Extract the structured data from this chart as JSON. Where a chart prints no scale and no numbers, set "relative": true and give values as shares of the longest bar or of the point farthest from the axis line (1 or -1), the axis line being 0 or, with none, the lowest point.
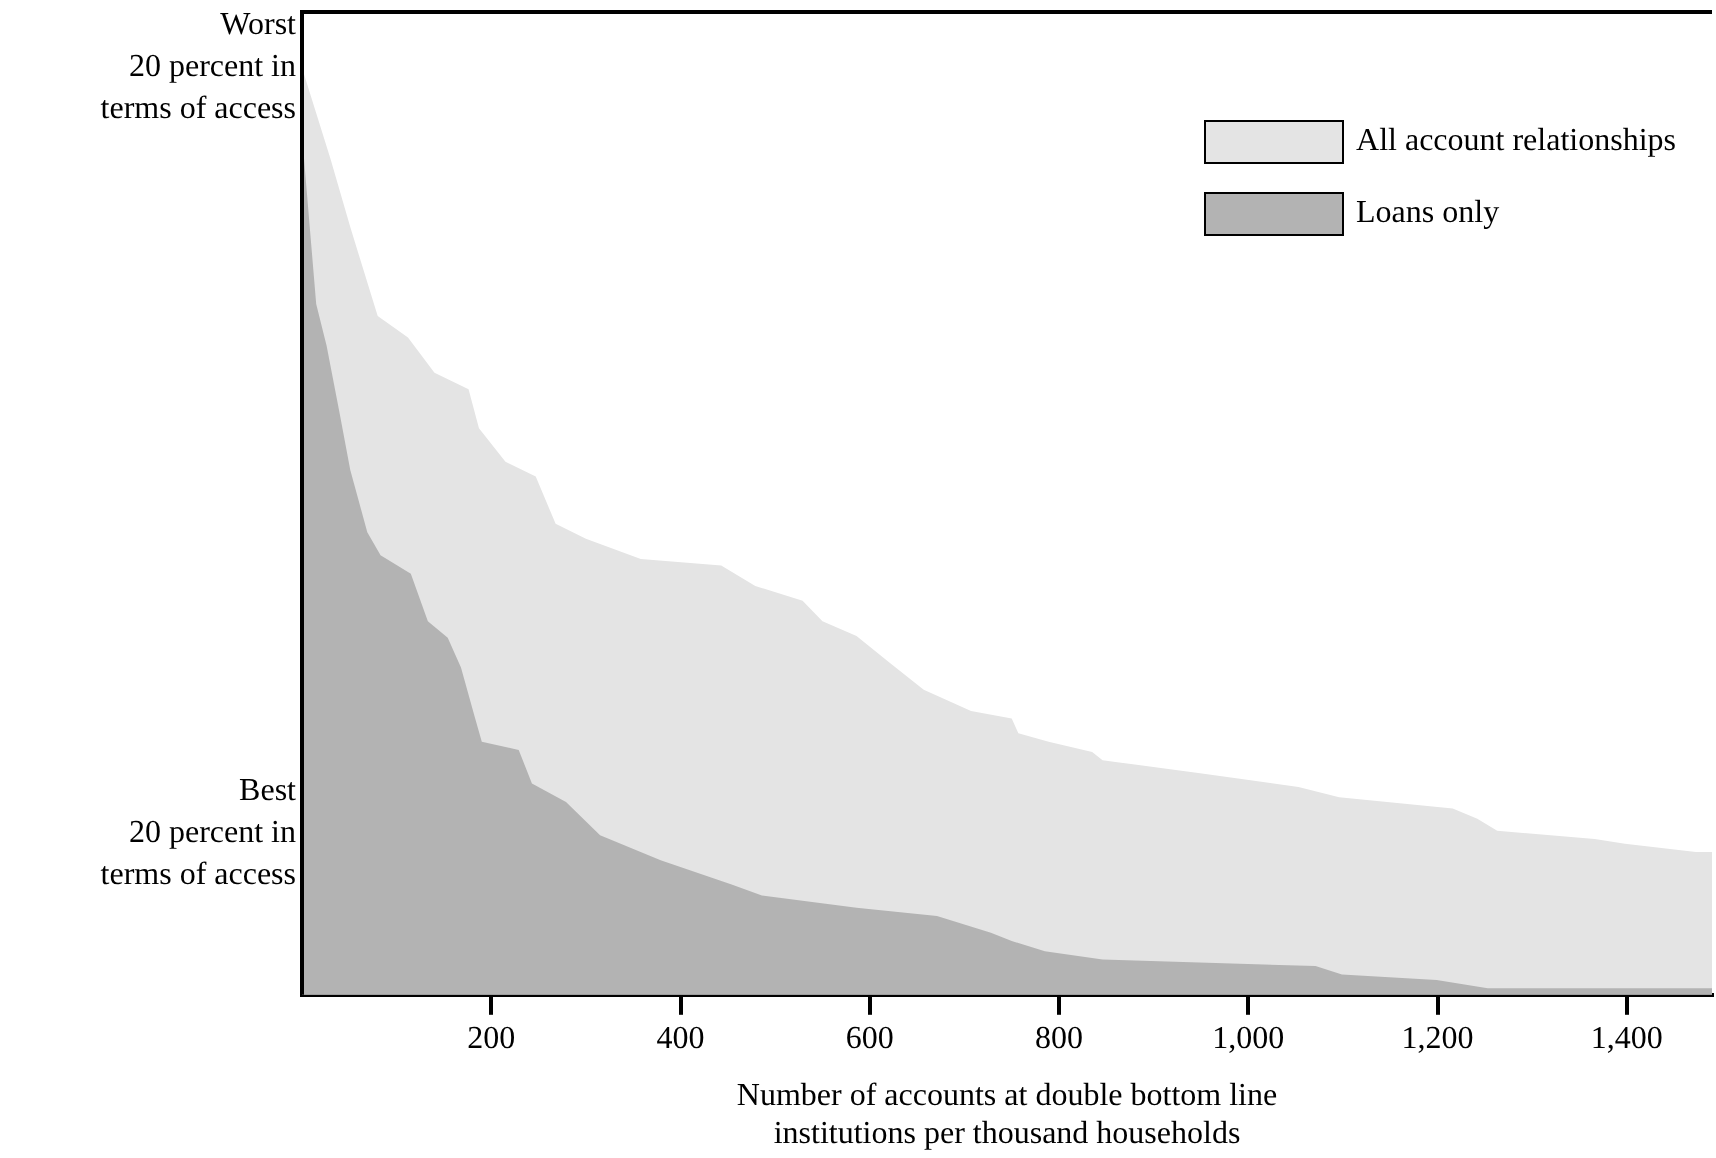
{
  "chart_data": {
    "type": "area",
    "relative": true,
    "xlabel": "Number of accounts at double bottom line institutions per thousand households",
    "xlim": [
      0,
      1490
    ],
    "xticks": [
      200,
      400,
      600,
      800,
      {
        "value": 1000,
        "label": "1,000"
      },
      {
        "value": 1200,
        "label": "1,200"
      },
      {
        "value": 1400,
        "label": "1,400"
      }
    ],
    "annotations": [
      "Worst 20 percent in terms of access",
      "Best 20 percent in terms of access"
    ],
    "legend": "top right",
    "grid": false,
    "series": [
      {
        "name": "All account relationships",
        "color": "#e4e4e4",
        "x": [
          0,
          30,
          51,
          80,
          112,
          140,
          176,
          187,
          215,
          247,
          268,
          300,
          358,
          443,
          479,
          529,
          550,
          586,
          621,
          657,
          707,
          750,
          757,
          789,
          835,
          846,
          882,
          949,
          991,
          1053,
          1096,
          1216,
          1242,
          1263,
          1366,
          1398,
          1473,
          1490
        ],
        "values": [
          1,
          0.902,
          0.828,
          0.732,
          0.709,
          0.671,
          0.653,
          0.611,
          0.575,
          0.559,
          0.508,
          0.492,
          0.47,
          0.463,
          0.441,
          0.425,
          0.403,
          0.387,
          0.358,
          0.329,
          0.306,
          0.298,
          0.282,
          0.273,
          0.262,
          0.253,
          0.248,
          0.239,
          0.233,
          0.224,
          0.213,
          0.201,
          0.19,
          0.177,
          0.168,
          0.163,
          0.154,
          0.154
        ]
      },
      {
        "name": "Loans only",
        "color": "#b3b3b3",
        "x": [
          0,
          15,
          26,
          40,
          51,
          69,
          83,
          115,
          133,
          154,
          168,
          183,
          190,
          229,
          243,
          279,
          315,
          379,
          454,
          486,
          586,
          671,
          728,
          750,
          785,
          846,
          1071,
          1099,
          1199,
          1253,
          1490
        ],
        "values": [
          0.928,
          0.745,
          0.7,
          0.626,
          0.566,
          0.499,
          0.474,
          0.454,
          0.403,
          0.385,
          0.353,
          0.298,
          0.273,
          0.264,
          0.228,
          0.208,
          0.172,
          0.145,
          0.119,
          0.107,
          0.094,
          0.085,
          0.067,
          0.058,
          0.047,
          0.038,
          0.031,
          0.022,
          0.016,
          0.007,
          0.007
        ]
      }
    ]
  }
}
